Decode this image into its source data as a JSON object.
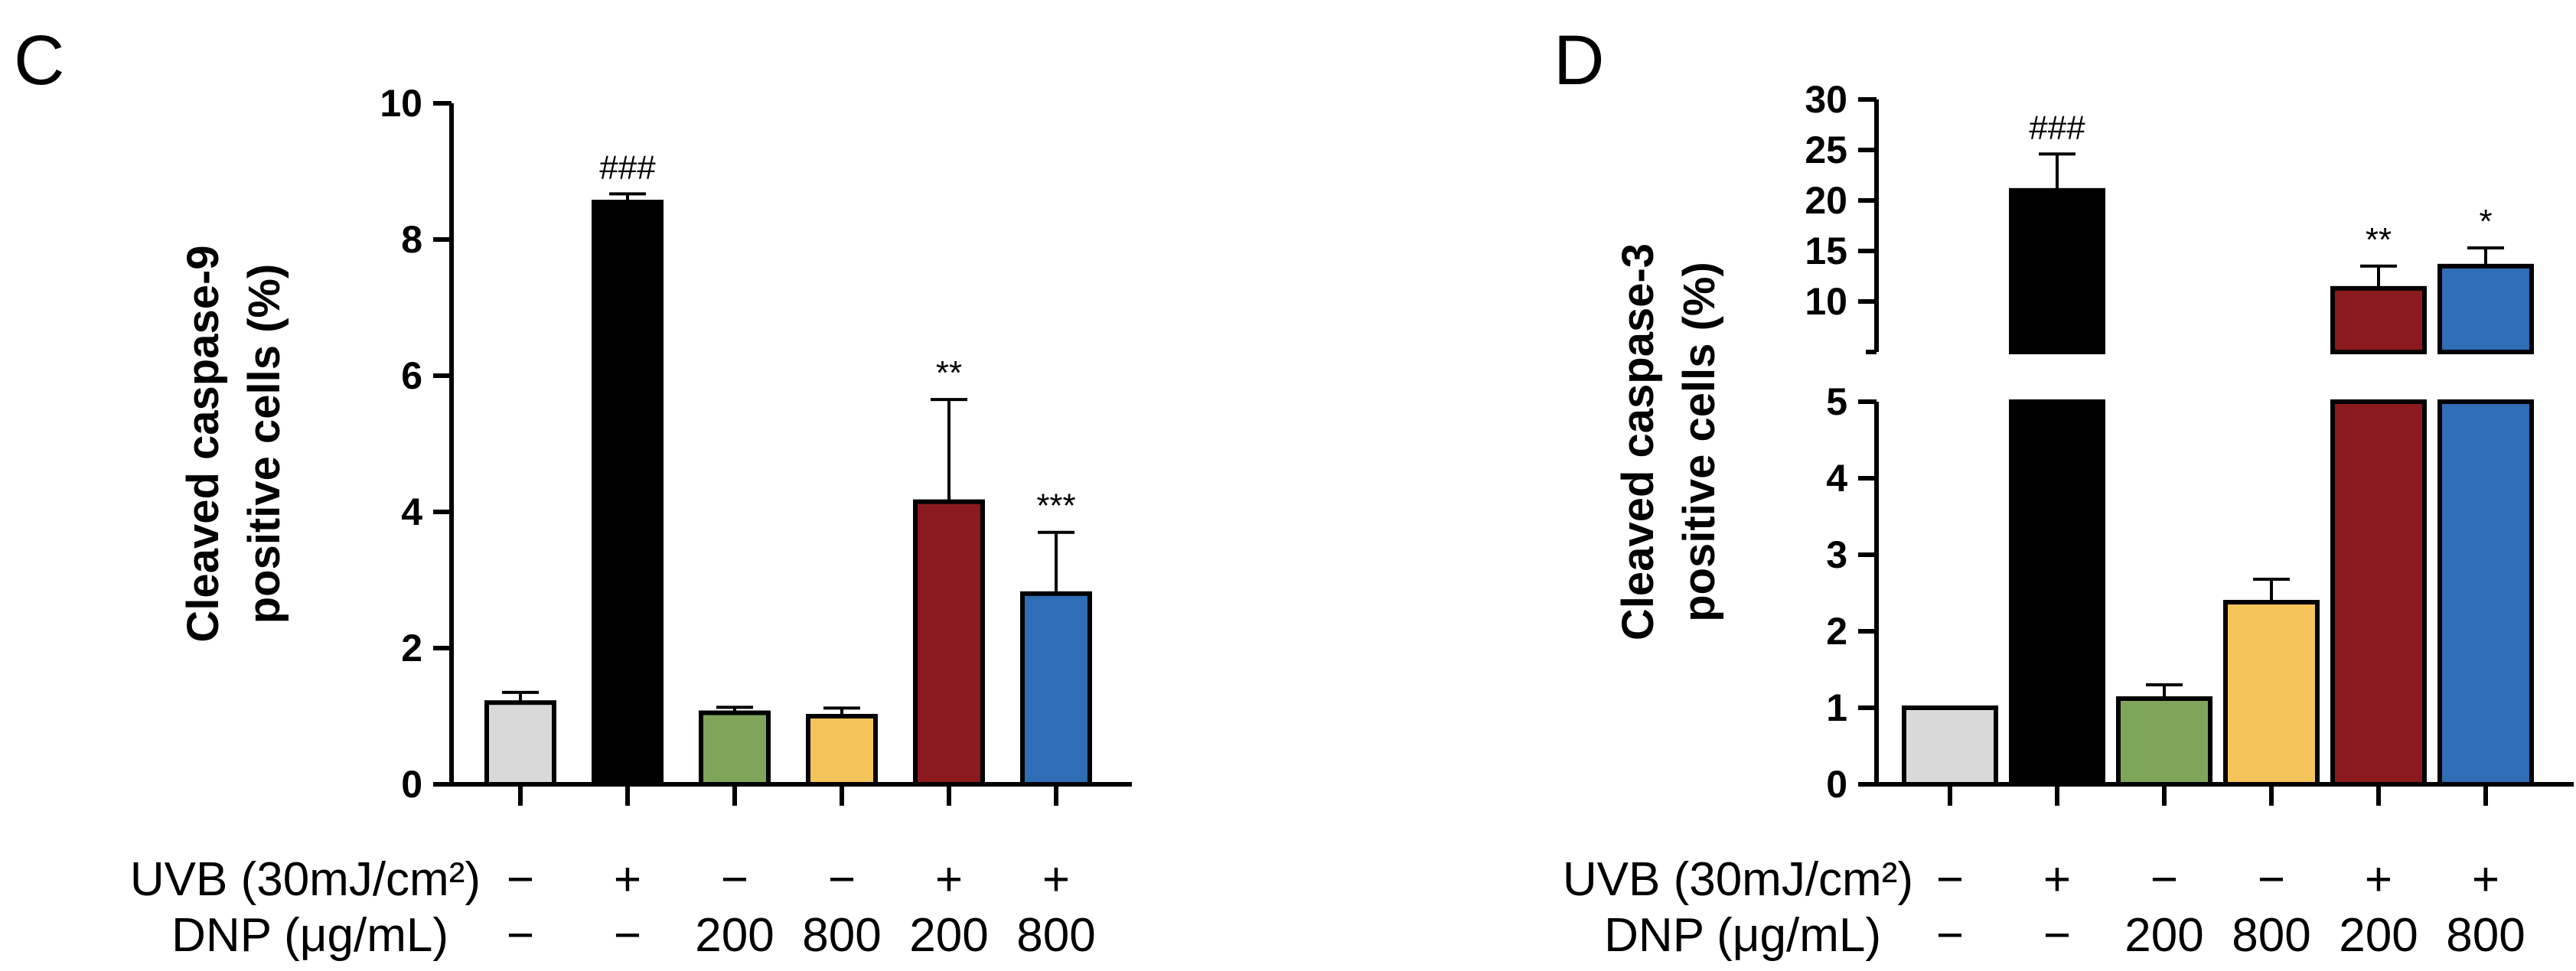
{
  "chart_data": [
    {
      "panel": "C",
      "type": "bar",
      "ylabel_line1": "Cleaved caspase-9",
      "ylabel_line2": "positive cells (%)",
      "ylim": [
        0,
        10
      ],
      "yticks": [
        0,
        2,
        4,
        6,
        8,
        10
      ],
      "row1_label": "UVB (30mJ/cm²)",
      "row2_label": "DNP (μg/mL)",
      "groups": [
        {
          "uvb": "−",
          "dnp": "−",
          "value": 1.2,
          "error": 0.15,
          "color": "#d9d9d9",
          "sig": ""
        },
        {
          "uvb": "+",
          "dnp": "−",
          "value": 8.55,
          "error": 0.12,
          "color": "#000000",
          "sig": "###"
        },
        {
          "uvb": "−",
          "dnp": "200",
          "value": 1.05,
          "error": 0.08,
          "color": "#7fa55a",
          "sig": ""
        },
        {
          "uvb": "−",
          "dnp": "800",
          "value": 1.0,
          "error": 0.12,
          "color": "#f4c35a",
          "sig": ""
        },
        {
          "uvb": "+",
          "dnp": "200",
          "value": 4.15,
          "error": 1.5,
          "color": "#8b1a1f",
          "sig": "**"
        },
        {
          "uvb": "+",
          "dnp": "800",
          "value": 2.8,
          "error": 0.9,
          "color": "#2f6db5",
          "sig": "***"
        }
      ]
    },
    {
      "panel": "D",
      "type": "bar",
      "ylabel_line1": "Cleaved caspase-3",
      "ylabel_line2": "positive cells (%)",
      "broken_axis": true,
      "lower_ylim": [
        0,
        5
      ],
      "lower_yticks": [
        0,
        1,
        2,
        3,
        4,
        5
      ],
      "upper_ylim": [
        5,
        30
      ],
      "upper_yticks": [
        10,
        15,
        20,
        25,
        30
      ],
      "row1_label": "UVB (30mJ/cm²)",
      "row2_label": "DNP (μg/mL)",
      "groups": [
        {
          "uvb": "−",
          "dnp": "−",
          "value": 1.0,
          "error": 0.0,
          "color": "#d9d9d9",
          "sig": ""
        },
        {
          "uvb": "+",
          "dnp": "−",
          "value": 21.0,
          "error": 3.6,
          "color": "#000000",
          "sig": "###"
        },
        {
          "uvb": "−",
          "dnp": "200",
          "value": 1.12,
          "error": 0.18,
          "color": "#7fa55a",
          "sig": ""
        },
        {
          "uvb": "−",
          "dnp": "800",
          "value": 2.38,
          "error": 0.3,
          "color": "#f4c35a",
          "sig": ""
        },
        {
          "uvb": "+",
          "dnp": "200",
          "value": 11.3,
          "error": 2.2,
          "color": "#8b1a1f",
          "sig": "**"
        },
        {
          "uvb": "+",
          "dnp": "800",
          "value": 13.5,
          "error": 1.8,
          "color": "#2f6db5",
          "sig": "*"
        }
      ]
    }
  ]
}
